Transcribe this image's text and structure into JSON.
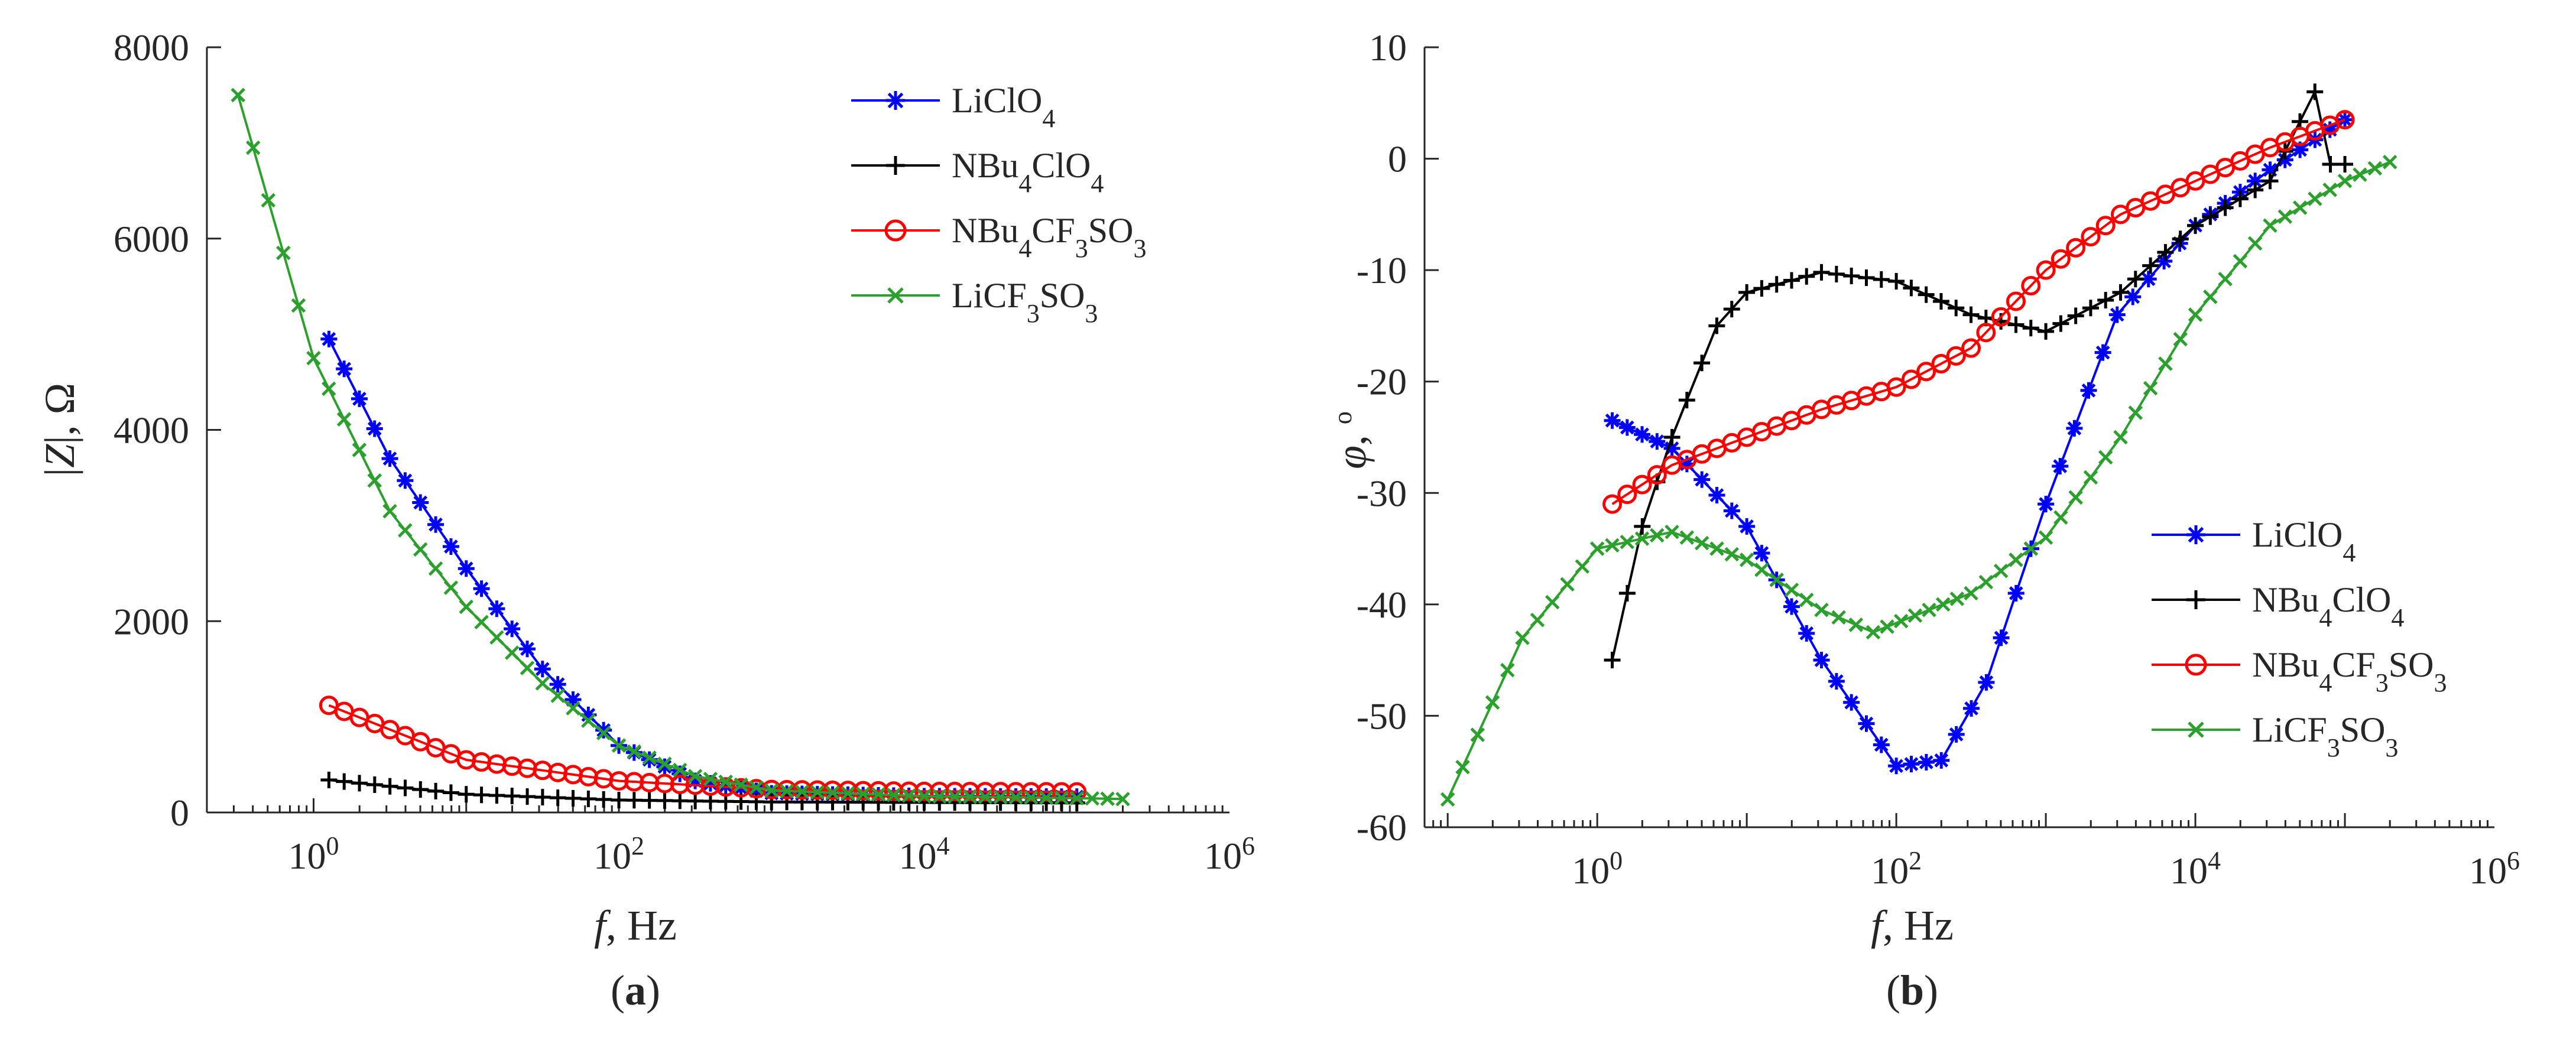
{
  "chart_data": [
    {
      "type": "line",
      "panel_label": "a",
      "panel_label_text": "(a)",
      "xscale": "log",
      "xlabel": "f, Hz",
      "ylabel": "|Z|, Ω",
      "xlim": [
        0.2,
        1000000
      ],
      "ylim": [
        0,
        8000
      ],
      "xticks": [
        1,
        100,
        10000,
        1000000
      ],
      "xtick_labels": [
        {
          "base": "10",
          "exp": "0"
        },
        {
          "base": "10",
          "exp": "2"
        },
        {
          "base": "10",
          "exp": "4"
        },
        {
          "base": "10",
          "exp": "6"
        }
      ],
      "yticks": [
        0,
        2000,
        4000,
        6000,
        8000
      ],
      "ytick_labels": [
        "0",
        "2000",
        "4000",
        "6000",
        "8000"
      ],
      "legend_position": "top-right",
      "series": [
        {
          "name": "LiClO4",
          "label_parts": [
            [
              "LiClO",
              false
            ],
            [
              "4",
              true
            ]
          ],
          "color": "#0000ff",
          "marker": "asterisk",
          "x": [
            1.26,
            3.16,
            10,
            31.6,
            100,
            316,
            1000,
            10000,
            100000
          ],
          "y": [
            4950,
            3700,
            2550,
            1500,
            700,
            330,
            200,
            170,
            165
          ]
        },
        {
          "name": "NBu4ClO4",
          "label_parts": [
            [
              "NBu",
              false
            ],
            [
              "4",
              true
            ],
            [
              "ClO",
              false
            ],
            [
              "4",
              true
            ]
          ],
          "color": "#000000",
          "marker": "plus",
          "x": [
            1.26,
            10,
            100,
            1000,
            10000,
            100000
          ],
          "y": [
            340,
            190,
            130,
            110,
            105,
            100
          ]
        },
        {
          "name": "NBu4CF3SO3",
          "label_parts": [
            [
              "NBu",
              false
            ],
            [
              "4",
              true
            ],
            [
              "CF",
              false
            ],
            [
              "3",
              true
            ],
            [
              "SO",
              false
            ],
            [
              "3",
              true
            ]
          ],
          "color": "#ff0000",
          "marker": "circle",
          "x": [
            1.26,
            10,
            100,
            1000,
            10000,
            100000
          ],
          "y": [
            1120,
            550,
            330,
            240,
            220,
            215
          ]
        },
        {
          "name": "LiCF3SO3",
          "label_parts": [
            [
              "LiCF",
              false
            ],
            [
              "3",
              true
            ],
            [
              "SO",
              false
            ],
            [
              "3",
              true
            ]
          ],
          "color": "#2ca02c",
          "marker": "cross",
          "x": [
            0.32,
            1,
            3.16,
            10,
            31.6,
            100,
            316,
            1000,
            10000,
            100000,
            200000
          ],
          "y": [
            7500,
            4750,
            3150,
            2150,
            1350,
            700,
            380,
            230,
            170,
            150,
            140
          ]
        }
      ]
    },
    {
      "type": "line",
      "panel_label": "b",
      "panel_label_text": "(b)",
      "xscale": "log",
      "xlabel": "f, Hz",
      "ylabel": "φ, °",
      "ylabel_symbol": "φ",
      "ylabel_rest": ",",
      "ylabel_degree": "o",
      "xlim": [
        0.07,
        1000000
      ],
      "ylim": [
        -60,
        10
      ],
      "xticks": [
        1,
        100,
        10000,
        1000000
      ],
      "xtick_labels": [
        {
          "base": "10",
          "exp": "0"
        },
        {
          "base": "10",
          "exp": "2"
        },
        {
          "base": "10",
          "exp": "4"
        },
        {
          "base": "10",
          "exp": "6"
        }
      ],
      "yticks": [
        -60,
        -50,
        -40,
        -30,
        -20,
        -10,
        0,
        10
      ],
      "ytick_labels": [
        "-60",
        "-50",
        "-40",
        "-30",
        "-20",
        "-10",
        "0",
        "10"
      ],
      "legend_position": "bottom-right",
      "series": [
        {
          "name": "LiClO4",
          "label_parts": [
            [
              "LiClO",
              false
            ],
            [
              "4",
              true
            ]
          ],
          "color": "#0000ff",
          "marker": "asterisk",
          "x": [
            1.26,
            3.16,
            10,
            31.6,
            100,
            200,
            400,
            1000,
            3000,
            10000,
            31600,
            100000
          ],
          "y": [
            -23.5,
            -26,
            -33,
            -45,
            -54.5,
            -54,
            -47,
            -31,
            -14,
            -6,
            -1,
            3.5
          ]
        },
        {
          "name": "NBu4ClO4",
          "label_parts": [
            [
              "NBu",
              false
            ],
            [
              "4",
              true
            ],
            [
              "ClO",
              false
            ],
            [
              "4",
              true
            ]
          ],
          "color": "#000000",
          "marker": "plus",
          "x": [
            1.26,
            2,
            3.16,
            6.3,
            10,
            31.6,
            100,
            316,
            1000,
            3160,
            10000,
            31600,
            63000,
            80000,
            100000
          ],
          "y": [
            -45,
            -33,
            -25,
            -15,
            -12,
            -10.2,
            -11,
            -14,
            -15.5,
            -12,
            -6,
            -2,
            6,
            -0.5,
            -0.5
          ]
        },
        {
          "name": "NBu4CF3SO3",
          "label_parts": [
            [
              "NBu",
              false
            ],
            [
              "4",
              true
            ],
            [
              "CF",
              false
            ],
            [
              "3",
              true
            ],
            [
              "SO",
              false
            ],
            [
              "3",
              true
            ]
          ],
          "color": "#ff0000",
          "marker": "circle",
          "x": [
            1.26,
            3.16,
            10,
            31.6,
            100,
            316,
            1000,
            3160,
            10000,
            31600,
            100000
          ],
          "y": [
            -31,
            -27.5,
            -25,
            -22.5,
            -20.5,
            -17,
            -10,
            -5,
            -2,
            1,
            3.5
          ]
        },
        {
          "name": "LiCF3SO3",
          "label_parts": [
            [
              "LiCF",
              false
            ],
            [
              "3",
              true
            ],
            [
              "SO",
              false
            ],
            [
              "3",
              true
            ]
          ],
          "color": "#2ca02c",
          "marker": "cross",
          "x": [
            0.1,
            0.316,
            1,
            3.16,
            10,
            31.6,
            70,
            316,
            1000,
            3160,
            10000,
            31600,
            100000,
            200000
          ],
          "y": [
            -57.5,
            -43,
            -35,
            -33.5,
            -36,
            -40.5,
            -42.5,
            -39,
            -34,
            -25,
            -14,
            -6,
            -2,
            -0.3
          ]
        }
      ]
    }
  ]
}
